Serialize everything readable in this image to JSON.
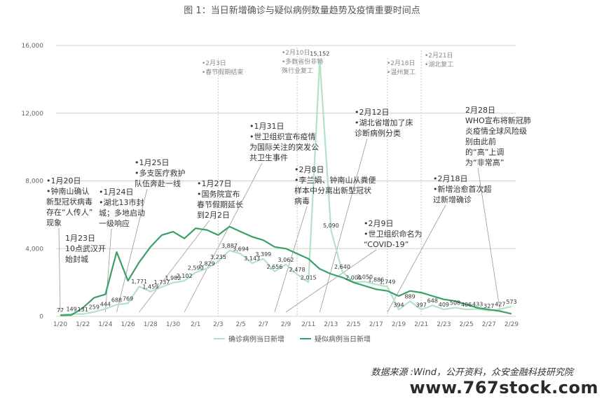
{
  "header": {
    "title": "图 1：当日新增确诊与疑似病例数量趋势及疫情重要时间点"
  },
  "source": "数据来源 :Wind，公开资料，众安金融科技研究院",
  "watermark": "www.767stock.com",
  "colors": {
    "confirmed": "#b3e3c7",
    "suspected": "#3aa065",
    "grid": "#d0d0d0",
    "annotation": "#333333",
    "date_gray": "#888888"
  },
  "chart_data": {
    "type": "line",
    "title": "图 1：当日新增确诊与疑似病例数量趋势及疫情重要时间点",
    "ylim": [
      0,
      16000
    ],
    "y_ticks": [
      0,
      4000,
      8000,
      12000,
      16000
    ],
    "y_tick_labels": [
      "0",
      "4,000",
      "8,000",
      "12,000",
      "16,000"
    ],
    "x": [
      "1/20",
      "1/21",
      "1/22",
      "1/23",
      "1/24",
      "1/25",
      "1/26",
      "1/27",
      "1/28",
      "1/29",
      "1/30",
      "1/31",
      "2/1",
      "2/2",
      "2/3",
      "2/4",
      "2/5",
      "2/6",
      "2/7",
      "2/8",
      "2/9",
      "2/10",
      "2/11",
      "2/12",
      "2/13",
      "2/14",
      "2/15",
      "2/16",
      "2/17",
      "2/18",
      "2/19",
      "2/20",
      "2/21",
      "2/22",
      "2/23",
      "2/24",
      "2/25",
      "2/26",
      "2/27",
      "2/28",
      "2/29"
    ],
    "x_tick_labels": [
      "1/20",
      "1/22",
      "1/24",
      "1/26",
      "1/28",
      "1/30",
      "2/1",
      "2/3",
      "2/5",
      "2/7",
      "2/9",
      "2/11",
      "2/13",
      "2/15",
      "2/17",
      "2/19",
      "2/21",
      "2/23",
      "2/25",
      "2/27",
      "2/29"
    ],
    "legend_position": "bottom",
    "series": [
      {
        "name": "确诊病例当日新增",
        "values": [
          77,
          149,
          131,
          259,
          444,
          688,
          769,
          1771,
          1459,
          1737,
          1982,
          2102,
          2590,
          2829,
          3235,
          3887,
          3694,
          3143,
          3399,
          2656,
          3062,
          2478,
          2015,
          15152,
          5090,
          2640,
          2009,
          2050,
          1886,
          1749,
          394,
          889,
          397,
          648,
          409,
          508,
          406,
          433,
          327,
          427,
          573
        ]
      },
      {
        "name": "疑似病例当日新增",
        "values": [
          60,
          80,
          500,
          1100,
          1300,
          3800,
          2100,
          3200,
          4100,
          4800,
          5000,
          4600,
          5200,
          5100,
          4800,
          5300,
          5000,
          4700,
          4500,
          4100,
          4000,
          3700,
          3400,
          2800,
          2500,
          2300,
          2000,
          1800,
          1600,
          1500,
          1200,
          1500,
          1400,
          1200,
          1000,
          900,
          700,
          500,
          400,
          300,
          150
        ]
      }
    ],
    "data_labels": [
      "77",
      "149",
      "131",
      "259",
      "444",
      "688",
      "769",
      "1,771",
      "1,459",
      "1,737",
      "1,982",
      "2,102",
      "2,590",
      "2,829",
      "3,235",
      "3,887",
      "3,694",
      "3,143",
      "3,399",
      "2,656",
      "3,062",
      "2,478",
      "2,015",
      "15,152",
      "5,090",
      "2,640",
      "2,009",
      "2,050",
      "1,886",
      "1,749",
      "394",
      "889",
      "397",
      "648",
      "409",
      "508",
      "406",
      "433",
      "327",
      "427",
      "573"
    ],
    "annotations": [
      {
        "date": "1/20",
        "lines": [
          "•1月20日",
          "•钟南山确认",
          "新型冠状病毒",
          "存在“人传人”",
          "现象"
        ]
      },
      {
        "date": "1/23",
        "lines": [
          "1月23日",
          "10点武汉开",
          "始封城"
        ]
      },
      {
        "date": "1/24",
        "lines": [
          "•1月24日",
          "•湖北13市封",
          "城；多地启动",
          "一级响应"
        ]
      },
      {
        "date": "1/25",
        "lines": [
          "•1月25日",
          "•多支医疗救护",
          "队伍奔赴一线"
        ]
      },
      {
        "date": "1/27",
        "lines": [
          "•1月27日",
          "•国务院宣布",
          "春节假期延长",
          "到2月2日"
        ]
      },
      {
        "date": "1/31",
        "lines": [
          "•1月31日",
          "•世卫组织宣布疫情",
          "为国际关注的突发公",
          "共卫生事件"
        ]
      },
      {
        "date": "2/3",
        "lines": [
          "•2月3日",
          "•春节假期结束"
        ]
      },
      {
        "date": "2/8",
        "lines": [
          "•2月8日",
          "•李兰娟、钟南山从粪便",
          "样本中分离出新型冠状",
          "病毒"
        ]
      },
      {
        "date": "2/9",
        "lines": [
          "•2月9日",
          "•世卫组织命名为",
          "“COVID-19”"
        ]
      },
      {
        "date": "2/10",
        "lines": [
          "•2月10日",
          "•多数省份非特",
          "殊行业复工"
        ]
      },
      {
        "date": "2/12",
        "lines": [
          "•2月12日",
          "•湖北省增加了床",
          "诊断病例分类"
        ]
      },
      {
        "date": "2/18",
        "lines": [
          "•2月18日",
          "•温州复工"
        ]
      },
      {
        "date": "2/18b",
        "lines": [
          "•2月18日",
          "•新增治愈首次超",
          "过新增确诊"
        ]
      },
      {
        "date": "2/21",
        "lines": [
          "•2月21日",
          "•湖北复工"
        ]
      },
      {
        "date": "2/28",
        "lines": [
          "2月28日",
          "WHO宣布将新冠肺",
          "炎疫情全球风险级",
          "别由此前",
          "的“高”上调",
          "为“非常高”"
        ]
      }
    ]
  }
}
